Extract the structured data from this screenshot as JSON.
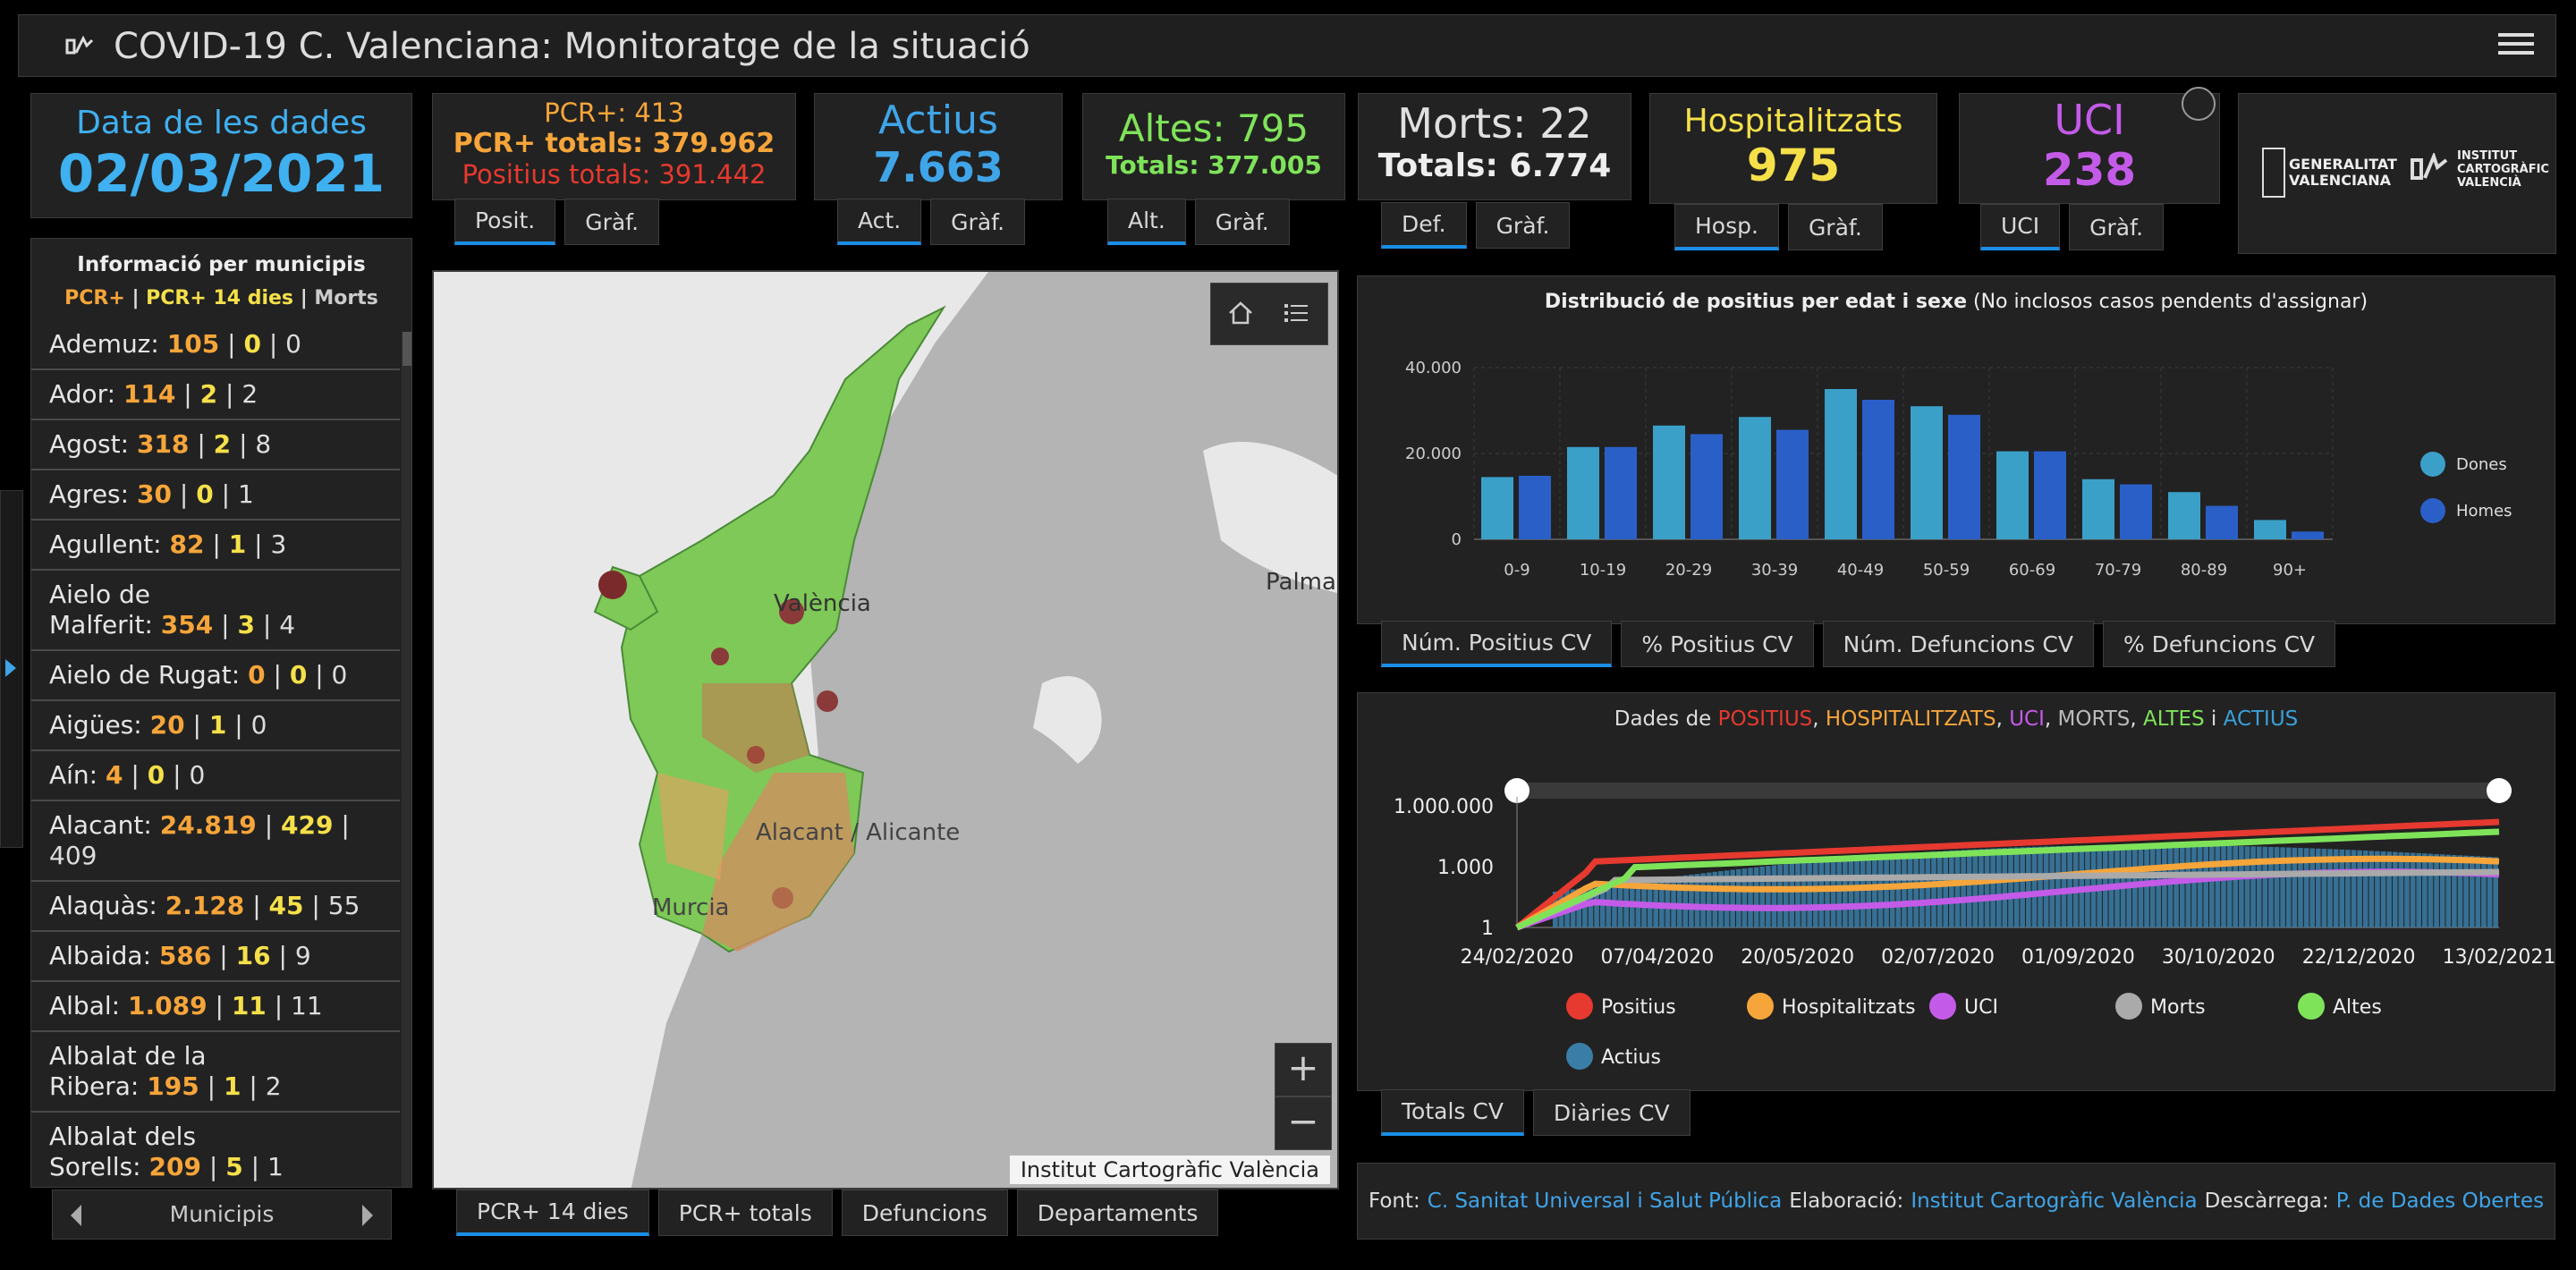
{
  "header": {
    "title": "COVID-19 C. Valenciana: Monitoratge de la situació"
  },
  "date_card": {
    "label": "Data de les dades",
    "value": "02/03/2021"
  },
  "pcr_card": {
    "line1": "PCR+: 413",
    "line2": "PCR+ totals: 379.962",
    "line3": "Positius totals: 391.442"
  },
  "actius_card": {
    "label": "Actius",
    "value": "7.663"
  },
  "altes_card": {
    "line1": "Altes: 795",
    "line2": "Totals: 377.005"
  },
  "morts_card": {
    "line1": "Morts: 22",
    "line2": "Totals: 6.774"
  },
  "hosp_card": {
    "label": "Hospitalitzats",
    "value": "975"
  },
  "uci_card": {
    "label": "UCI",
    "value": "238"
  },
  "tabs": {
    "pcr": [
      "Posit.",
      "Gràf."
    ],
    "actius": [
      "Act.",
      "Gràf."
    ],
    "altes": [
      "Alt.",
      "Gràf."
    ],
    "morts": [
      "Def.",
      "Gràf."
    ],
    "hosp": [
      "Hosp.",
      "Gràf."
    ],
    "uci": [
      "UCI",
      "Gràf."
    ]
  },
  "logos": {
    "gva": "GENERALITAT VALENCIANA",
    "icv": "INSTITUT CARTOGRÀFIC VALENCIÀ"
  },
  "municipis": {
    "title": "Informació per municipis",
    "legend": [
      "PCR+",
      "PCR+ 14 dies",
      "Morts"
    ],
    "rows": [
      {
        "name": "Ademuz:",
        "a": "105",
        "b": "0",
        "c": "0"
      },
      {
        "name": "Ador:",
        "a": "114",
        "b": "2",
        "c": "2"
      },
      {
        "name": "Agost:",
        "a": "318",
        "b": "2",
        "c": "8"
      },
      {
        "name": "Agres:",
        "a": "30",
        "b": "0",
        "c": "1"
      },
      {
        "name": "Agullent:",
        "a": "82",
        "b": "1",
        "c": "3"
      },
      {
        "name": "Aielo de",
        "name2": "Malferit:",
        "a": "354",
        "b": "3",
        "c": "4"
      },
      {
        "name": "Aielo de Rugat:",
        "a": "0",
        "b": "0",
        "c": "0"
      },
      {
        "name": "Aigües:",
        "a": "20",
        "b": "1",
        "c": "0"
      },
      {
        "name": "Aín:",
        "a": "4",
        "b": "0",
        "c": "0"
      },
      {
        "name": "Alacant:",
        "a": "24.819",
        "b": "429",
        "c": "409"
      },
      {
        "name": "Alaquàs:",
        "a": "2.128",
        "b": "45",
        "c": "55"
      },
      {
        "name": "Albaida:",
        "a": "586",
        "b": "16",
        "c": "9"
      },
      {
        "name": "Albal:",
        "a": "1.089",
        "b": "11",
        "c": "11"
      },
      {
        "name": "Albalat de la",
        "name2": "Ribera:",
        "a": "195",
        "b": "1",
        "c": "2"
      },
      {
        "name": "Albalat dels",
        "name2": "Sorells:",
        "a": "209",
        "b": "5",
        "c": "1"
      }
    ],
    "nav_label": "Municipis"
  },
  "map": {
    "labels": {
      "valencia": "València",
      "alacant": "Alacant / Alicante",
      "murcia": "Murcia",
      "palma": "Palma"
    },
    "attribution": "Institut Cartogràfic València",
    "tabs": [
      "PCR+ 14 dies",
      "PCR+ totals",
      "Defuncions",
      "Departaments"
    ]
  },
  "chart_data": [
    {
      "type": "bar",
      "title": "Distribució de positius per edat i sexe",
      "subtitle": "(No inclosos casos pendents d'assignar)",
      "categories": [
        "0-9",
        "10-19",
        "20-29",
        "30-39",
        "40-49",
        "50-59",
        "60-69",
        "70-79",
        "80-89",
        "90+"
      ],
      "series": [
        {
          "name": "Dones",
          "color": "#3aa0c8",
          "values": [
            14500,
            21500,
            26500,
            28500,
            35000,
            31000,
            20500,
            14000,
            11000,
            4500
          ]
        },
        {
          "name": "Homes",
          "color": "#2a5fc8",
          "values": [
            14800,
            21500,
            24500,
            25500,
            32500,
            29000,
            20500,
            12800,
            7800,
            1800
          ]
        }
      ],
      "yticks": [
        "0",
        "20.000",
        "40.000"
      ],
      "ylim": [
        0,
        40000
      ],
      "legend_position": "right",
      "tabs": [
        "Núm. Positius CV",
        "% Positius CV",
        "Núm. Defuncions CV",
        "% Defuncions CV"
      ]
    },
    {
      "type": "line",
      "title_parts": [
        {
          "text": "Dades de ",
          "color": "#dddddd"
        },
        {
          "text": "POSITIUS",
          "color": "#e6392f"
        },
        {
          "text": ", ",
          "color": "#dddddd"
        },
        {
          "text": "HOSPITALITZATS",
          "color": "#f6a53a"
        },
        {
          "text": ", ",
          "color": "#dddddd"
        },
        {
          "text": "UCI",
          "color": "#c45be8"
        },
        {
          "text": ", ",
          "color": "#dddddd"
        },
        {
          "text": "MORTS",
          "color": "#bbbbbb"
        },
        {
          "text": ", ",
          "color": "#dddddd"
        },
        {
          "text": "ALTES",
          "color": "#7fe35a"
        },
        {
          "text": " i ",
          "color": "#dddddd"
        },
        {
          "text": "ACTIUS",
          "color": "#3aa0d8"
        }
      ],
      "scale": "log",
      "yticks": [
        "1",
        "1.000",
        "1.000.000"
      ],
      "xticks": [
        "24/02/2020",
        "07/04/2020",
        "20/05/2020",
        "02/07/2020",
        "01/09/2020",
        "30/10/2020",
        "22/12/2020",
        "13/02/2021"
      ],
      "series": [
        {
          "name": "Positius",
          "color": "#e6392f"
        },
        {
          "name": "Hospitalitzats",
          "color": "#f6a53a"
        },
        {
          "name": "UCI",
          "color": "#c45be8"
        },
        {
          "name": "Morts",
          "color": "#aaaaaa"
        },
        {
          "name": "Altes",
          "color": "#7fe35a"
        },
        {
          "name": "Actius",
          "color": "#3a7ea8"
        }
      ],
      "tabs": [
        "Totals CV",
        "Diàries CV"
      ]
    }
  ],
  "footer": {
    "font_label": "Font:",
    "font_link": "C. Sanitat Universal i Salut Pública",
    "elab_label": "Elaboració:",
    "elab_link": "Institut Cartogràfic València",
    "desc_label": "Descàrrega:",
    "desc_link": "P. de Dades Obertes"
  }
}
